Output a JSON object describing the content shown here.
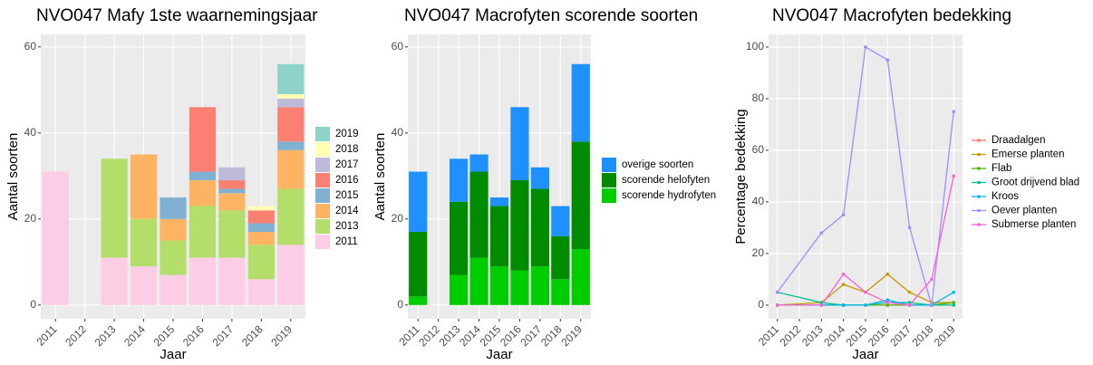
{
  "chart_data": [
    {
      "type": "bar",
      "stacked": true,
      "title": "NVO047 Mafy 1ste waarnemingsjaar",
      "x_label": "Jaar",
      "y_label": "Aantal soorten",
      "categories": [
        "2011",
        "2012",
        "2013",
        "2014",
        "2015",
        "2016",
        "2017",
        "2018",
        "2019"
      ],
      "series": [
        {
          "name": "2011",
          "color": "#fccde5",
          "values": [
            31,
            0,
            11,
            9,
            7,
            11,
            11,
            6,
            14
          ]
        },
        {
          "name": "2013",
          "color": "#b3de69",
          "values": [
            0,
            0,
            23,
            11,
            8,
            12,
            11,
            8,
            13
          ]
        },
        {
          "name": "2014",
          "color": "#fdb462",
          "values": [
            0,
            0,
            0,
            15,
            5,
            6,
            4,
            3,
            9
          ]
        },
        {
          "name": "2015",
          "color": "#80b1d3",
          "values": [
            0,
            0,
            0,
            0,
            5,
            2,
            1,
            2,
            2
          ]
        },
        {
          "name": "2016",
          "color": "#fb8072",
          "values": [
            0,
            0,
            0,
            0,
            0,
            15,
            2,
            3,
            8
          ]
        },
        {
          "name": "2017",
          "color": "#bebada",
          "values": [
            0,
            0,
            0,
            0,
            0,
            0,
            3,
            0,
            2
          ]
        },
        {
          "name": "2018",
          "color": "#ffffb3",
          "values": [
            0,
            0,
            0,
            0,
            0,
            0,
            0,
            1,
            1
          ]
        },
        {
          "name": "2019",
          "color": "#8dd3c7",
          "values": [
            0,
            0,
            0,
            0,
            0,
            0,
            0,
            0,
            7
          ]
        }
      ],
      "ylim": [
        -3.2,
        62.9
      ],
      "yticks": [
        0,
        20,
        40,
        60
      ],
      "grid": true,
      "legend": "right"
    },
    {
      "type": "bar",
      "stacked": true,
      "title": "NVO047 Macrofyten scorende soorten",
      "x_label": "Jaar",
      "y_label": "Aantal soorten",
      "categories": [
        "2011",
        "2012",
        "2013",
        "2014",
        "2015",
        "2016",
        "2017",
        "2018",
        "2019"
      ],
      "series": [
        {
          "name": "scorende hydrofyten",
          "color": "#00cd00",
          "values": [
            2,
            0,
            7,
            11,
            9,
            8,
            9,
            6,
            13
          ]
        },
        {
          "name": "scorende helofyten",
          "color": "#008b00",
          "values": [
            15,
            0,
            17,
            20,
            14,
            21,
            18,
            10,
            25
          ]
        },
        {
          "name": "overige soorten",
          "color": "#1e90ff",
          "values": [
            14,
            0,
            10,
            4,
            2,
            17,
            5,
            7,
            18
          ]
        }
      ],
      "ylim": [
        -3.2,
        62.9
      ],
      "yticks": [
        0,
        20,
        40,
        60
      ],
      "grid": true,
      "legend": "right"
    },
    {
      "type": "line",
      "title": "NVO047 Macrofyten bedekking",
      "x_label": "Jaar",
      "y_label": "Percentage bedekking",
      "x": [
        2011,
        2013,
        2014,
        2015,
        2016,
        2017,
        2018,
        2019
      ],
      "series": [
        {
          "name": "Draadalgen",
          "color": "#F8766D",
          "values": [
            0,
            0,
            0,
            0,
            0,
            0,
            0,
            0
          ]
        },
        {
          "name": "Emerse planten",
          "color": "#C49A00",
          "values": [
            0,
            1,
            8,
            5,
            12,
            5,
            1,
            1
          ]
        },
        {
          "name": "Flab",
          "color": "#53B400",
          "values": [
            0,
            0,
            0,
            0,
            0,
            0,
            0,
            1
          ]
        },
        {
          "name": "Groot drijvend blad",
          "color": "#00C094",
          "values": [
            5,
            1,
            0,
            0,
            1,
            1,
            0,
            0
          ]
        },
        {
          "name": "Kroos",
          "color": "#00B6EB",
          "values": [
            0,
            0,
            0,
            0,
            2,
            0,
            0,
            5
          ]
        },
        {
          "name": "Oever planten",
          "color": "#A58AFF",
          "values": [
            5,
            28,
            35,
            100,
            95,
            30,
            0,
            75
          ]
        },
        {
          "name": "Submerse planten",
          "color": "#FB61D7",
          "values": [
            0,
            0,
            12,
            5,
            1,
            0,
            10,
            50
          ]
        }
      ],
      "xlim": [
        2010.6,
        2019.4
      ],
      "xticks": [
        2011,
        2012,
        2013,
        2014,
        2015,
        2016,
        2017,
        2018,
        2019
      ],
      "ylim": [
        -5.3,
        104.9
      ],
      "yticks": [
        0,
        20,
        40,
        60,
        80,
        100
      ],
      "grid": true,
      "legend": "right"
    }
  ]
}
